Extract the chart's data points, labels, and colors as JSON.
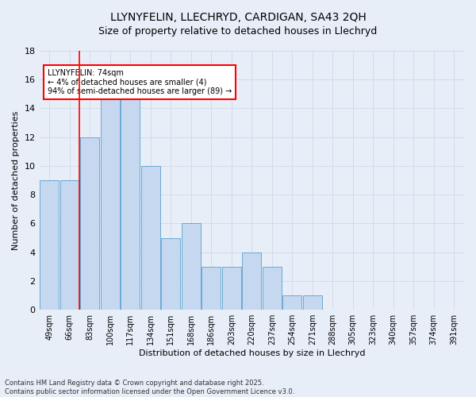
{
  "title1": "LLYNYFELIN, LLECHRYD, CARDIGAN, SA43 2QH",
  "title2": "Size of property relative to detached houses in Llechryd",
  "xlabel": "Distribution of detached houses by size in Llechryd",
  "ylabel": "Number of detached properties",
  "categories": [
    "49sqm",
    "66sqm",
    "83sqm",
    "100sqm",
    "117sqm",
    "134sqm",
    "151sqm",
    "168sqm",
    "186sqm",
    "203sqm",
    "220sqm",
    "237sqm",
    "254sqm",
    "271sqm",
    "288sqm",
    "305sqm",
    "323sqm",
    "340sqm",
    "357sqm",
    "374sqm",
    "391sqm"
  ],
  "values": [
    9,
    9,
    12,
    15,
    15,
    10,
    5,
    6,
    3,
    3,
    4,
    3,
    1,
    1,
    0,
    0,
    0,
    0,
    0,
    0,
    0
  ],
  "bar_color": "#c5d8f0",
  "bar_edge_color": "#6aaad4",
  "annotation_text": "LLYNYFELIN: 74sqm\n← 4% of detached houses are smaller (4)\n94% of semi-detached houses are larger (89) →",
  "annotation_box_color": "white",
  "annotation_box_edge_color": "red",
  "vline_color": "red",
  "vline_x_index": 1,
  "ylim": [
    0,
    18
  ],
  "yticks": [
    0,
    2,
    4,
    6,
    8,
    10,
    12,
    14,
    16,
    18
  ],
  "grid_color": "#d0d8e8",
  "bg_color": "#e8eef8",
  "footer": "Contains HM Land Registry data © Crown copyright and database right 2025.\nContains public sector information licensed under the Open Government Licence v3.0.",
  "title_fontsize": 10,
  "subtitle_fontsize": 9,
  "axis_label_fontsize": 8,
  "tick_fontsize": 7,
  "footer_fontsize": 6,
  "bar_width": 0.95
}
